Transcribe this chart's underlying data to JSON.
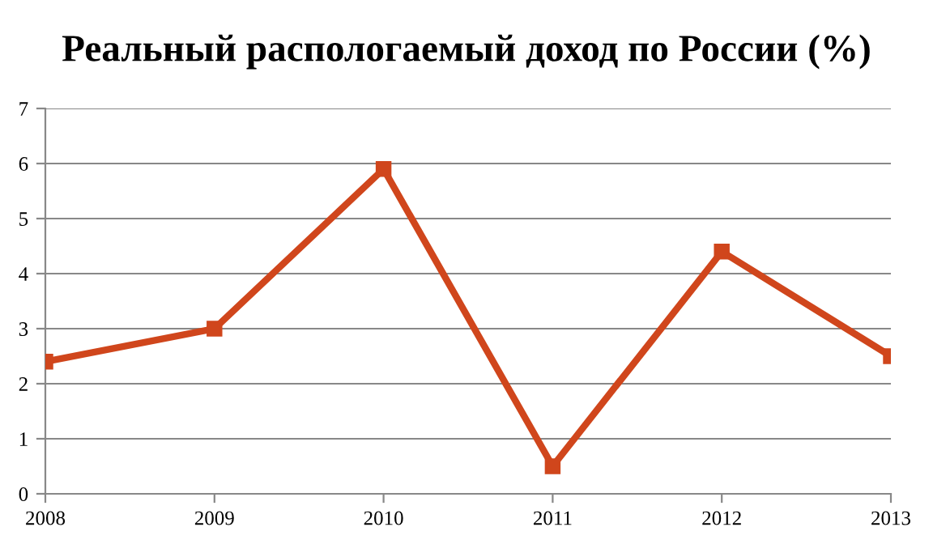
{
  "chart_data": {
    "type": "line",
    "title": "Реальный распологаемый доход по России (%)",
    "x": [
      2008,
      2009,
      2010,
      2011,
      2012,
      2013
    ],
    "series": [
      {
        "color": "#d0461c",
        "values": [
          2.4,
          3.0,
          5.9,
          0.5,
          4.4,
          2.5
        ]
      }
    ],
    "xlim": [
      2008,
      2013
    ],
    "xticks": [
      2008,
      2009,
      2010,
      2011,
      2012,
      2013
    ],
    "ylim": [
      0,
      7
    ],
    "yticks": [
      0,
      1,
      2,
      3,
      4,
      5,
      6,
      7
    ],
    "grid": "y",
    "marker": "square",
    "line_style": "solid",
    "legend": false
  }
}
